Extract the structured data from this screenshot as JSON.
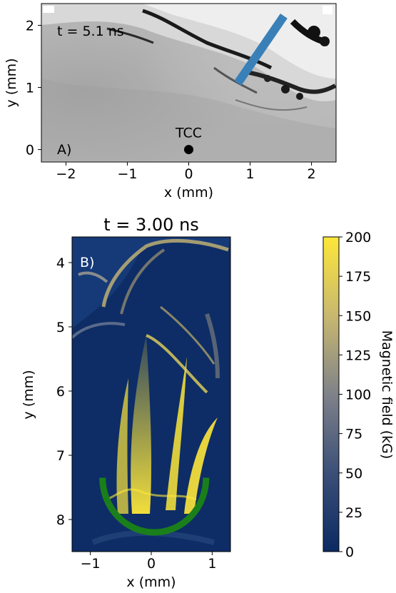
{
  "chart_data": [
    {
      "type": "image",
      "panel_label": "A)",
      "annotation": "t = 5.1 ns",
      "xlabel": "x (mm)",
      "ylabel": "y (mm)",
      "xlim": [
        -2.4,
        2.4
      ],
      "ylim": [
        -0.2,
        2.35
      ],
      "xticks": [
        -2,
        -1,
        0,
        1,
        2
      ],
      "xtick_labels": [
        "−2",
        "−1",
        "0",
        "1",
        "2"
      ],
      "yticks": [
        0,
        1,
        2
      ],
      "ytick_labels": [
        "0",
        "1",
        "2"
      ],
      "points": [
        {
          "label": "TCC",
          "x": 0,
          "y": 0
        }
      ],
      "segment": {
        "x": [
          0.8,
          1.55
        ],
        "y": [
          1.07,
          2.15
        ],
        "color": "#3a80b8"
      }
    },
    {
      "type": "heatmap",
      "panel_label": "B)",
      "title": "t = 3.00 ns",
      "xlabel": "x (mm)",
      "ylabel": "y (mm)",
      "xlim": [
        -1.3,
        1.3
      ],
      "ylim": [
        8.5,
        3.6
      ],
      "xticks": [
        -1,
        0,
        1
      ],
      "xtick_labels": [
        "−1",
        "0",
        "1"
      ],
      "yticks": [
        4,
        5,
        6,
        7,
        8
      ],
      "ytick_labels": [
        "4",
        "5",
        "6",
        "7",
        "8"
      ],
      "arc": {
        "center_x": 0.05,
        "center_y": 7.35,
        "radius": 0.85,
        "color": "#1a7f1a"
      },
      "colorbar": {
        "label": "Magnetic field (kG)",
        "range": [
          0,
          200
        ],
        "ticks": [
          0,
          25,
          50,
          75,
          100,
          125,
          150,
          175,
          200
        ],
        "tick_labels": [
          "0",
          "25",
          "50",
          "75",
          "100",
          "125",
          "150",
          "175",
          "200"
        ],
        "colormap": [
          "#0b2a63",
          "#3b4f78",
          "#7f8289",
          "#c8b870",
          "#fde73a"
        ]
      }
    }
  ]
}
